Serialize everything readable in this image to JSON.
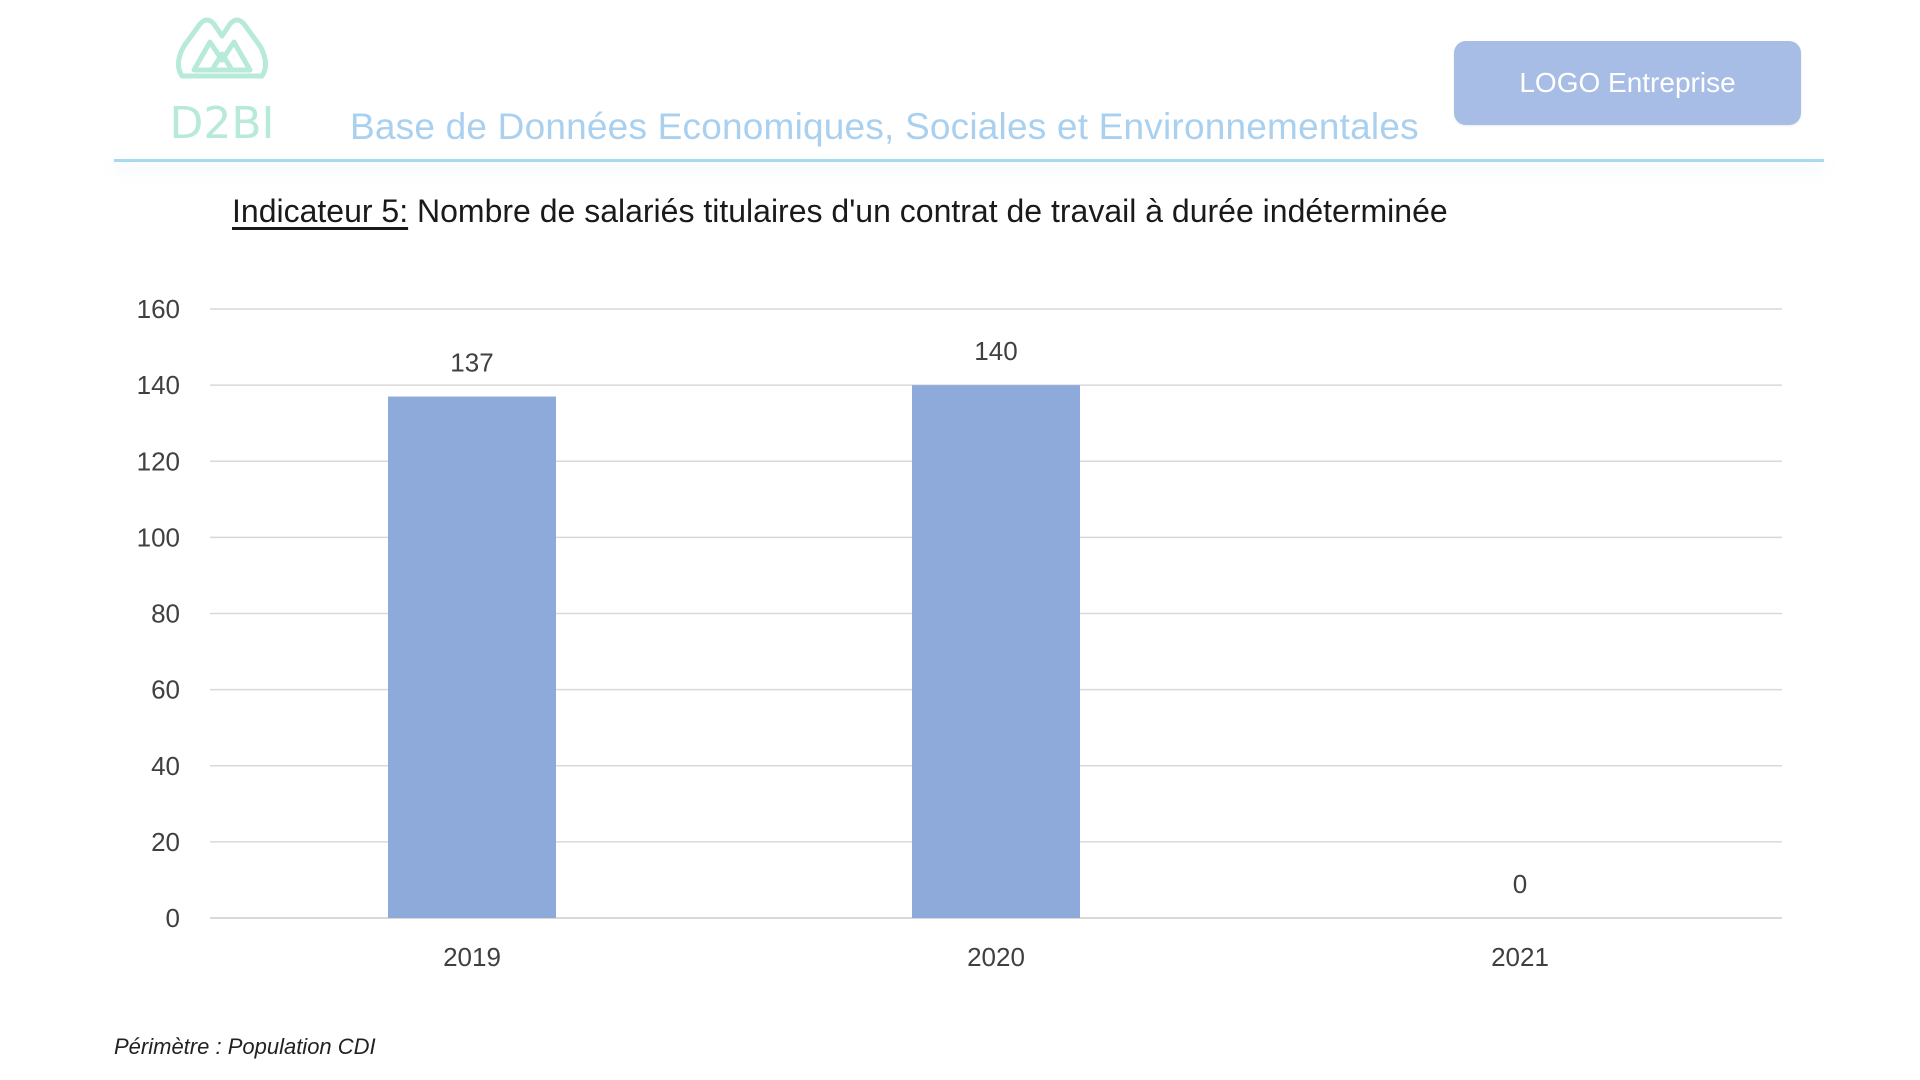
{
  "header": {
    "brand": "D2BI",
    "subtitle": "Base de Données Economiques, Sociales et Environnementales",
    "logo_placeholder": "LOGO Entreprise"
  },
  "indicator": {
    "lead": "Indicateur 5:",
    "text": "Nombre de salariés titulaires d'un contrat de travail à durée indéterminée"
  },
  "chart_data": {
    "type": "bar",
    "categories": [
      "2019",
      "2020",
      "2021"
    ],
    "values": [
      137,
      140,
      0
    ],
    "data_labels": [
      "137",
      "140",
      "0"
    ],
    "title": "",
    "xlabel": "",
    "ylabel": "",
    "ylim": [
      0,
      160
    ],
    "yticks": [
      0,
      20,
      40,
      60,
      80,
      100,
      120,
      140,
      160
    ],
    "grid": true,
    "legend": "none",
    "bar_color": "#8eaadb"
  },
  "footnote": "Périmètre : Population CDI",
  "colors": {
    "accent": "#a9d0ef",
    "logo_teal": "#b7ead9",
    "logo_box": "#a7bde6",
    "gridline": "#d9d9d9",
    "axis_text": "#404040"
  }
}
